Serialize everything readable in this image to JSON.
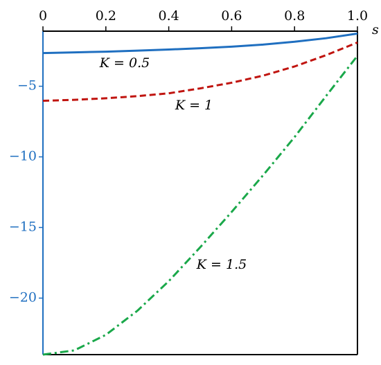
{
  "chart_data": {
    "type": "line",
    "x_label": "s",
    "x": [
      0,
      0.1,
      0.2,
      0.3,
      0.4,
      0.5,
      0.6,
      0.7,
      0.8,
      0.9,
      1
    ],
    "series": [
      {
        "name": "K = 0.5",
        "color": "#1f6fc0",
        "dash": "solid",
        "values": [
          -2.65,
          -2.6,
          -2.55,
          -2.48,
          -2.4,
          -2.31,
          -2.2,
          -2.05,
          -1.85,
          -1.6,
          -1.27
        ]
      },
      {
        "name": "K = 1",
        "color": "#c0140f",
        "dash": "dashed",
        "values": [
          -6.03,
          -5.96,
          -5.85,
          -5.7,
          -5.5,
          -5.15,
          -4.75,
          -4.25,
          -3.6,
          -2.8,
          -1.9
        ]
      },
      {
        "name": "K = 1.5",
        "color": "#1aa84a",
        "dash": "dashdot",
        "values": [
          -24,
          -23.7,
          -22.6,
          -20.9,
          -18.8,
          -16.4,
          -13.9,
          -11.3,
          -8.6,
          -5.7,
          -2.84
        ]
      }
    ],
    "xlim": [
      0,
      1
    ],
    "ylim": [
      -24,
      -1.1
    ],
    "xticks": [
      0,
      0.2,
      0.4,
      0.6,
      0.8,
      {
        "value": 1,
        "label": "1.0"
      }
    ],
    "yticks": [
      {
        "value": -5,
        "label": "−5"
      },
      {
        "value": -10,
        "label": "−10"
      },
      {
        "value": -15,
        "label": "−15"
      },
      {
        "value": -20,
        "label": "−20"
      }
    ],
    "y_axis_color": "#1f6fc0"
  }
}
